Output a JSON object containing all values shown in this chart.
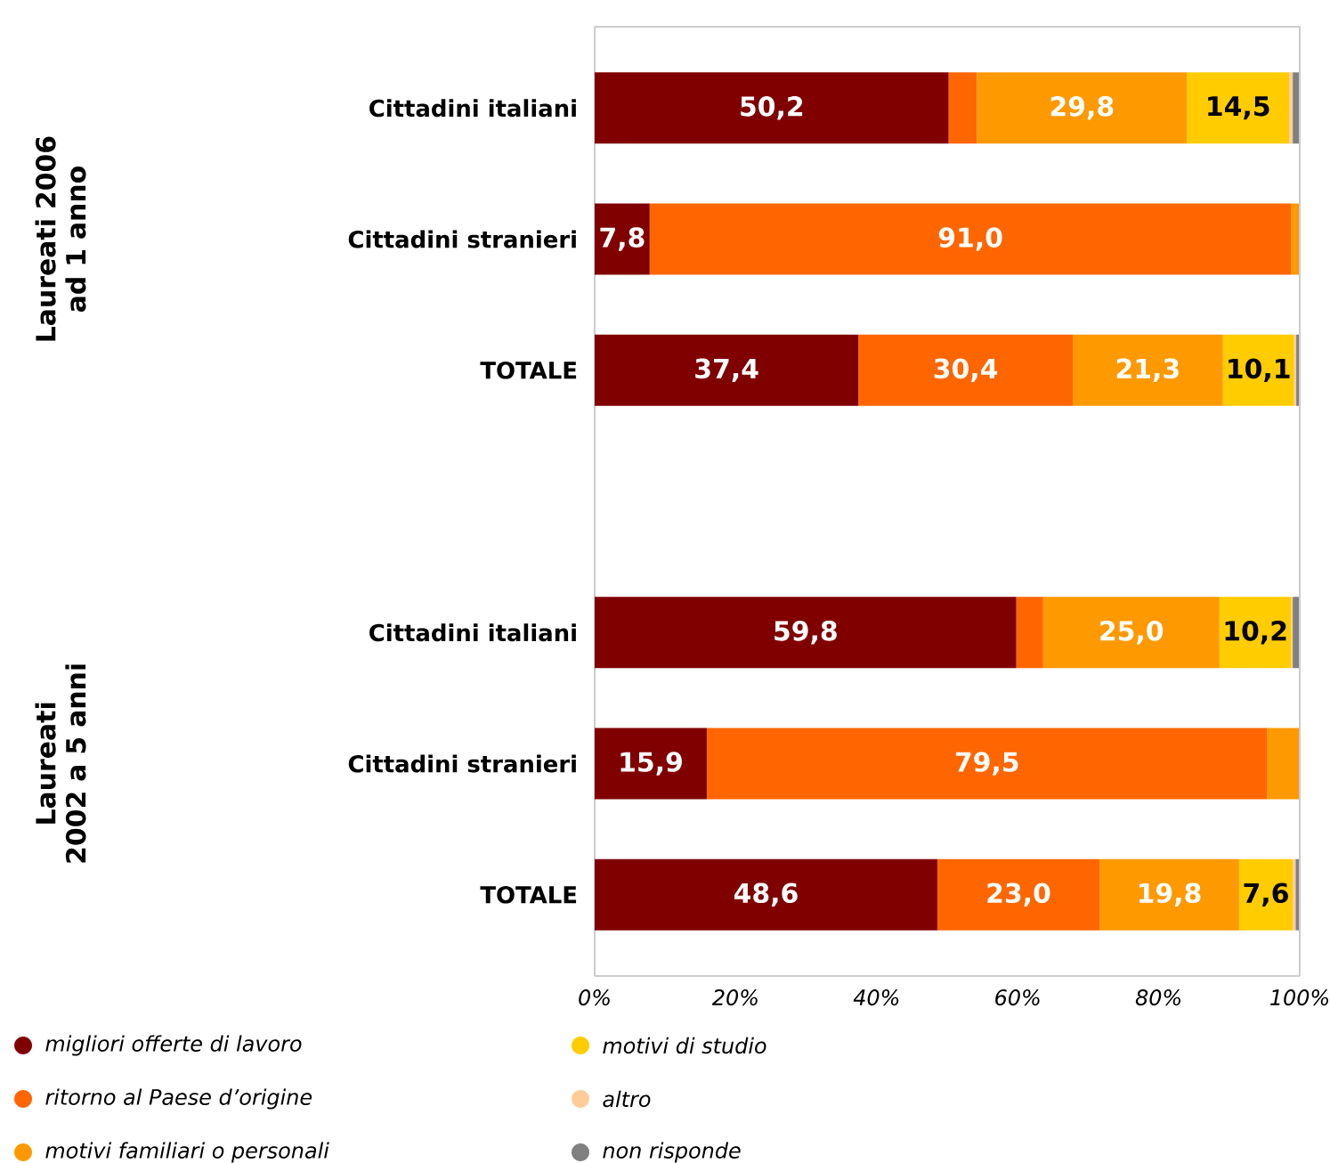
{
  "chart_data": {
    "type": "bar",
    "orientation": "horizontal",
    "stacked": true,
    "categories": [
      "Cittadini italiani",
      "Cittadini stranieri",
      "TOTALE",
      null,
      "Cittadini italiani",
      "Cittadini stranieri",
      "TOTALE"
    ],
    "series": [
      {
        "name": "migliori offerte di lavoro",
        "color": "#800000",
        "values": [
          50.2,
          7.8,
          37.4,
          null,
          59.8,
          15.9,
          48.6
        ],
        "value_labels": [
          "50,2",
          "7,8",
          "37,4",
          null,
          "59,8",
          "15,9",
          "48,6"
        ]
      },
      {
        "name": "ritorno al Paese d’origine",
        "color": "#ff6600",
        "values": [
          4.0,
          91.0,
          30.4,
          null,
          3.8,
          79.5,
          23.0
        ],
        "value_labels": [
          null,
          "91,0",
          "30,4",
          null,
          null,
          "79,5",
          "23,0"
        ]
      },
      {
        "name": "motivi familiari o personali",
        "color": "#ff9900",
        "values": [
          29.8,
          1.2,
          21.3,
          null,
          25.0,
          4.6,
          19.8
        ],
        "value_labels": [
          "29,8",
          null,
          "21,3",
          null,
          "25,0",
          null,
          "19,8"
        ]
      },
      {
        "name": "motivi di studio",
        "color": "#ffcc00",
        "values": [
          14.5,
          0,
          10.1,
          null,
          10.2,
          0,
          7.6
        ],
        "value_labels": [
          "14,5",
          null,
          "10,1",
          null,
          "10,2",
          null,
          "7,6"
        ]
      },
      {
        "name": "altro",
        "color": "#ffcc99",
        "values": [
          0.5,
          0,
          0.3,
          null,
          0.2,
          0,
          0.4
        ],
        "value_labels": [
          null,
          null,
          null,
          null,
          null,
          null,
          null
        ]
      },
      {
        "name": "non risponde",
        "color": "#808080",
        "values": [
          1.0,
          0,
          0.5,
          null,
          1.0,
          0,
          0.6
        ],
        "value_labels": [
          null,
          null,
          null,
          null,
          null,
          null,
          null
        ]
      }
    ],
    "xlim": [
      0,
      100
    ],
    "xticks": [
      {
        "value": 0,
        "label": "0%"
      },
      {
        "value": 20,
        "label": "20%"
      },
      {
        "value": 40,
        "label": "40%"
      },
      {
        "value": 60,
        "label": "60%"
      },
      {
        "value": 80,
        "label": "80%"
      },
      {
        "value": 100,
        "label": "100%"
      }
    ],
    "legend": "bottom",
    "annotations": [
      "Laureati 2006 ad 1 anno",
      "Laureati 2002 a 5 anni"
    ]
  }
}
